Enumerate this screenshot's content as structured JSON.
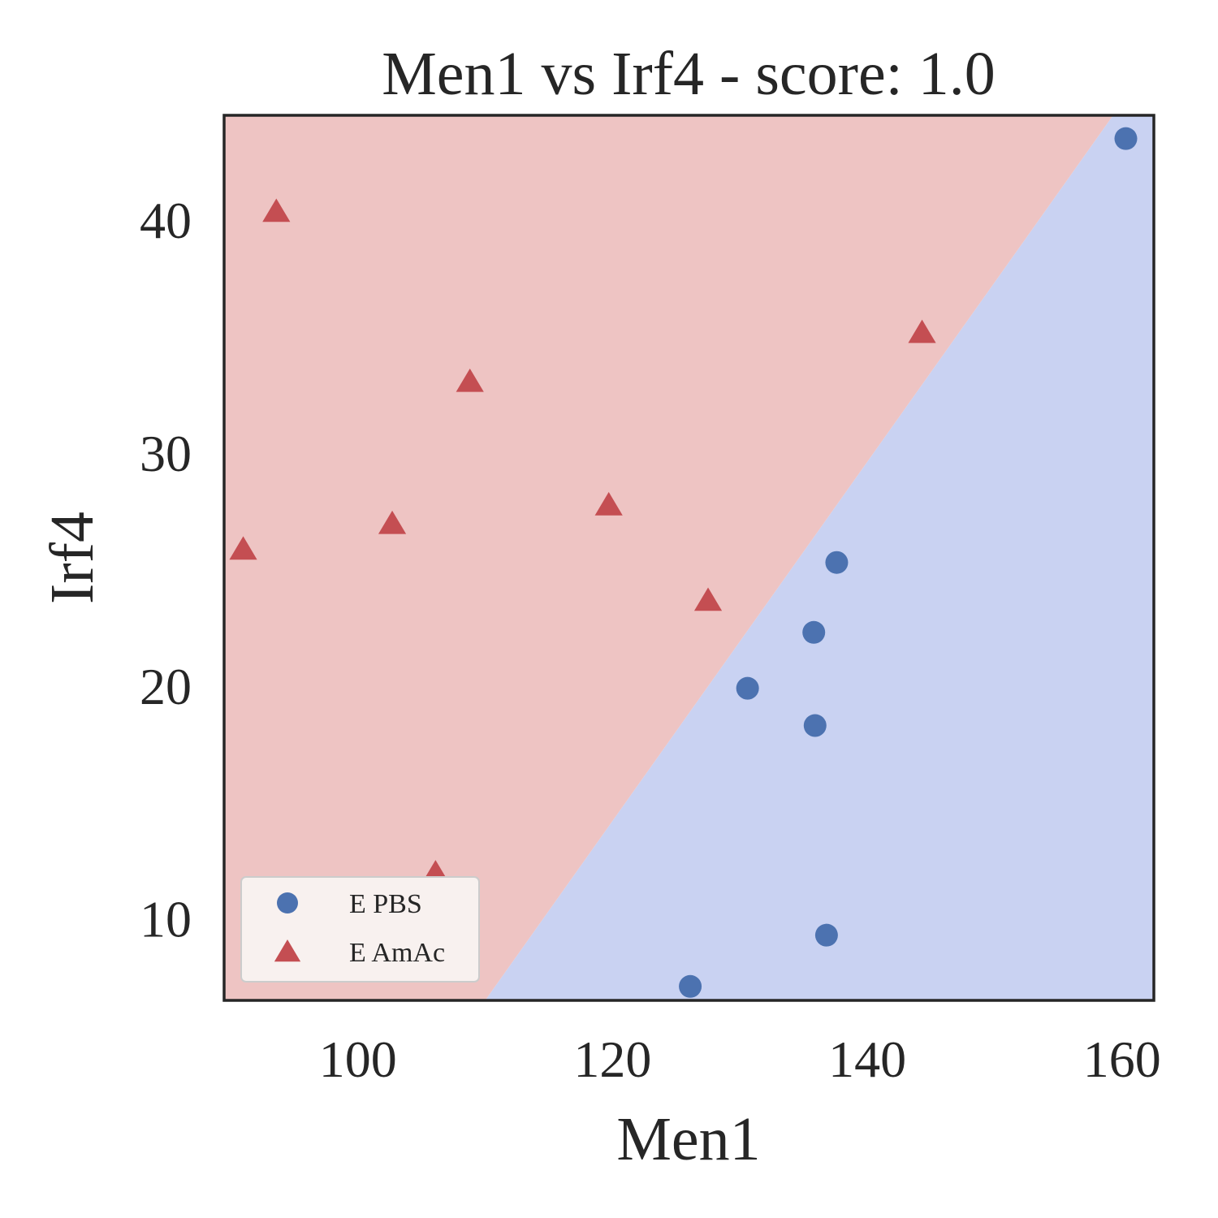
{
  "chart_data": {
    "type": "scatter",
    "title": "Men1 vs Irf4 - score: 1.0",
    "xlabel": "Men1",
    "ylabel": "Irf4",
    "xlim": [
      89.5,
      162.5
    ],
    "ylim": [
      6.5,
      44.5
    ],
    "xticks": [
      100,
      120,
      140,
      160
    ],
    "yticks": [
      10,
      20,
      30,
      40
    ],
    "grid": false,
    "legend_position": "lower-left",
    "decision_boundary": {
      "points": [
        [
          110,
          6.5
        ],
        [
          159.3,
          44.5
        ]
      ],
      "region_below_color": "#c9d2f2",
      "region_above_color": "#eec4c3"
    },
    "series": [
      {
        "name": "E PBS",
        "marker": "circle",
        "color": "#4c72b0",
        "points": [
          [
            160.3,
            43.5
          ],
          [
            137.6,
            25.3
          ],
          [
            135.8,
            22.3
          ],
          [
            130.6,
            19.9
          ],
          [
            135.9,
            18.3
          ],
          [
            136.8,
            9.3
          ],
          [
            126.1,
            7.1
          ]
        ]
      },
      {
        "name": "E AmAc",
        "marker": "triangle",
        "color": "#c44e52",
        "points": [
          [
            93.6,
            40.3
          ],
          [
            108.8,
            33.0
          ],
          [
            144.3,
            35.1
          ],
          [
            102.7,
            26.9
          ],
          [
            119.7,
            27.7
          ],
          [
            127.5,
            23.6
          ],
          [
            91.0,
            25.8
          ],
          [
            106.1,
            11.9
          ]
        ]
      }
    ]
  }
}
